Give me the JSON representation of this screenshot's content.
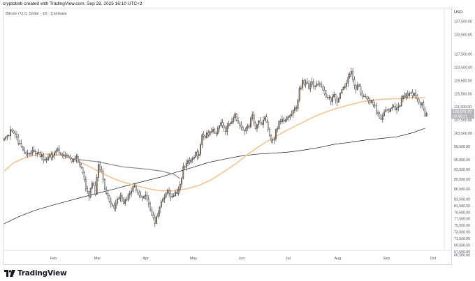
{
  "header": {
    "credit": "cryptobirb created with TradingView.com, Sep 28, 2025 16:10 UTC+2"
  },
  "chart_title": "Bitcoin / U.S. Dollar · 1D · Coinbase",
  "logo_text": "TradingView",
  "chart_data": {
    "type": "candlestick",
    "currency_label": "USD",
    "ylim": [
      66000,
      141000
    ],
    "y_ticks": [
      "137,500.00",
      "133,500.00",
      "127,500.00",
      "123,500.00",
      "119,500.00",
      "115,500.00",
      "111,500.00",
      "107,500.00",
      "103,500.00",
      "99,500.00",
      "95,500.00",
      "92,500.00",
      "89,500.00",
      "86,500.00",
      "83,500.00",
      "81,500.00",
      "79,500.00",
      "77,500.00",
      "75,500.00",
      "73,500.00",
      "71,500.00",
      "69,500.00",
      "67,500.00",
      "66,500.00"
    ],
    "y_tick_values": [
      137500,
      133500,
      127500,
      123500,
      119500,
      115500,
      111500,
      107500,
      103500,
      99500,
      95500,
      92500,
      89500,
      86500,
      83500,
      81500,
      79500,
      77500,
      75500,
      73500,
      71500,
      69500,
      67500,
      66500
    ],
    "x_labels": [
      "Feb",
      "Mar",
      "Apr",
      "May",
      "Jun",
      "Jul",
      "Aug",
      "Sep",
      "Oct"
    ],
    "x_label_days": [
      31,
      59,
      90,
      120,
      151,
      181,
      212,
      243,
      273
    ],
    "first_day": 0,
    "last_day": 269,
    "day_domain": [
      0,
      278
    ],
    "last_price": {
      "value": 109576,
      "label": "109,576.29",
      "countdown": "09:49:21"
    },
    "anchors": [
      [
        0,
        101500
      ],
      [
        5,
        104500
      ],
      [
        10,
        99800
      ],
      [
        14,
        96500
      ],
      [
        18,
        98200
      ],
      [
        22,
        97300
      ],
      [
        26,
        95200
      ],
      [
        31,
        97000
      ],
      [
        34,
        98400
      ],
      [
        37,
        96800
      ],
      [
        40,
        97100
      ],
      [
        43,
        95300
      ],
      [
        46,
        96800
      ],
      [
        48,
        93600
      ],
      [
        50,
        91200
      ],
      [
        52,
        86800
      ],
      [
        54,
        84600
      ],
      [
        56,
        88800
      ],
      [
        58,
        85200
      ],
      [
        60,
        94200
      ],
      [
        62,
        91800
      ],
      [
        64,
        87100
      ],
      [
        66,
        84200
      ],
      [
        68,
        82600
      ],
      [
        70,
        80700
      ],
      [
        72,
        83600
      ],
      [
        74,
        84400
      ],
      [
        76,
        82100
      ],
      [
        79,
        84200
      ],
      [
        82,
        87600
      ],
      [
        85,
        85300
      ],
      [
        88,
        83400
      ],
      [
        90,
        84500
      ],
      [
        92,
        81800
      ],
      [
        94,
        78100
      ],
      [
        96,
        76300
      ],
      [
        98,
        79700
      ],
      [
        100,
        83200
      ],
      [
        102,
        83900
      ],
      [
        104,
        85600
      ],
      [
        107,
        84300
      ],
      [
        110,
        85500
      ],
      [
        112,
        87300
      ],
      [
        114,
        92800
      ],
      [
        116,
        94700
      ],
      [
        118,
        94500
      ],
      [
        120,
        95600
      ],
      [
        122,
        97500
      ],
      [
        124,
        97100
      ],
      [
        126,
        103500
      ],
      [
        128,
        102300
      ],
      [
        130,
        103600
      ],
      [
        132,
        104200
      ],
      [
        135,
        103900
      ],
      [
        138,
        107200
      ],
      [
        141,
        104600
      ],
      [
        144,
        106900
      ],
      [
        147,
        108800
      ],
      [
        150,
        105600
      ],
      [
        153,
        104400
      ],
      [
        156,
        105900
      ],
      [
        158,
        109200
      ],
      [
        160,
        104800
      ],
      [
        162,
        107400
      ],
      [
        164,
        106300
      ],
      [
        166,
        108100
      ],
      [
        168,
        104500
      ],
      [
        170,
        101900
      ],
      [
        171,
        101000
      ],
      [
        173,
        104000
      ],
      [
        175,
        106800
      ],
      [
        178,
        107300
      ],
      [
        180,
        107800
      ],
      [
        182,
        108700
      ],
      [
        184,
        110600
      ],
      [
        186,
        111200
      ],
      [
        188,
        116700
      ],
      [
        190,
        119100
      ],
      [
        192,
        118400
      ],
      [
        194,
        117700
      ],
      [
        196,
        119000
      ],
      [
        198,
        117600
      ],
      [
        200,
        118100
      ],
      [
        202,
        117900
      ],
      [
        204,
        115800
      ],
      [
        206,
        114200
      ],
      [
        208,
        113600
      ],
      [
        210,
        114600
      ],
      [
        212,
        113200
      ],
      [
        214,
        115300
      ],
      [
        216,
        117400
      ],
      [
        218,
        119200
      ],
      [
        220,
        121000
      ],
      [
        221,
        122400
      ],
      [
        222,
        119300
      ],
      [
        224,
        117400
      ],
      [
        226,
        117800
      ],
      [
        228,
        114600
      ],
      [
        230,
        114000
      ],
      [
        232,
        113300
      ],
      [
        234,
        113100
      ],
      [
        236,
        111400
      ],
      [
        238,
        108800
      ],
      [
        240,
        108300
      ],
      [
        242,
        109600
      ],
      [
        244,
        110800
      ],
      [
        246,
        110700
      ],
      [
        248,
        111300
      ],
      [
        250,
        111200
      ],
      [
        252,
        112000
      ],
      [
        254,
        114500
      ],
      [
        256,
        115200
      ],
      [
        258,
        115700
      ],
      [
        260,
        115500
      ],
      [
        262,
        115300
      ],
      [
        264,
        112800
      ],
      [
        266,
        112500
      ],
      [
        268,
        109300
      ],
      [
        269,
        109576
      ]
    ],
    "ma_short": [
      [
        0,
        92000
      ],
      [
        6,
        94500
      ],
      [
        14,
        96200
      ],
      [
        22,
        97000
      ],
      [
        30,
        97200
      ],
      [
        38,
        96600
      ],
      [
        46,
        95200
      ],
      [
        54,
        93400
      ],
      [
        62,
        91400
      ],
      [
        70,
        89600
      ],
      [
        78,
        88300
      ],
      [
        86,
        87300
      ],
      [
        94,
        86400
      ],
      [
        100,
        86000
      ],
      [
        108,
        86000
      ],
      [
        116,
        86600
      ],
      [
        124,
        87600
      ],
      [
        132,
        89400
      ],
      [
        140,
        91800
      ],
      [
        148,
        94400
      ],
      [
        156,
        97400
      ],
      [
        164,
        100000
      ],
      [
        172,
        102300
      ],
      [
        180,
        104400
      ],
      [
        188,
        106300
      ],
      [
        196,
        108200
      ],
      [
        204,
        109800
      ],
      [
        212,
        111100
      ],
      [
        220,
        112100
      ],
      [
        228,
        113100
      ],
      [
        236,
        113600
      ],
      [
        244,
        113900
      ],
      [
        252,
        114000
      ],
      [
        260,
        114300
      ],
      [
        268,
        114300
      ]
    ],
    "ma_long": [
      [
        0,
        76000
      ],
      [
        10,
        78300
      ],
      [
        20,
        80100
      ],
      [
        30,
        81500
      ],
      [
        40,
        82800
      ],
      [
        50,
        84100
      ],
      [
        60,
        85300
      ],
      [
        70,
        86500
      ],
      [
        80,
        87800
      ],
      [
        90,
        89000
      ],
      [
        100,
        90200
      ],
      [
        110,
        91700
      ],
      [
        120,
        93100
      ],
      [
        130,
        94600
      ],
      [
        140,
        95600
      ],
      [
        150,
        96500
      ],
      [
        160,
        97100
      ],
      [
        170,
        97400
      ],
      [
        180,
        97700
      ],
      [
        190,
        98300
      ],
      [
        200,
        99100
      ],
      [
        210,
        100100
      ],
      [
        220,
        100700
      ],
      [
        230,
        101400
      ],
      [
        240,
        101900
      ],
      [
        250,
        102400
      ],
      [
        260,
        103600
      ],
      [
        268,
        105000
      ]
    ],
    "ma_overlay": [
      [
        47,
        95500
      ],
      [
        60,
        94800
      ],
      [
        75,
        93300
      ],
      [
        90,
        92600
      ],
      [
        100,
        92000
      ],
      [
        108,
        91000
      ],
      [
        112,
        89700
      ]
    ],
    "colors": {
      "candle_body": "#b08a55",
      "candle_wick": "#131722",
      "ma_short": "#f7c48f",
      "ma_long": "#131722",
      "ma_overlay": "#8c8f96",
      "price_tag": "#b4b6ba"
    }
  }
}
